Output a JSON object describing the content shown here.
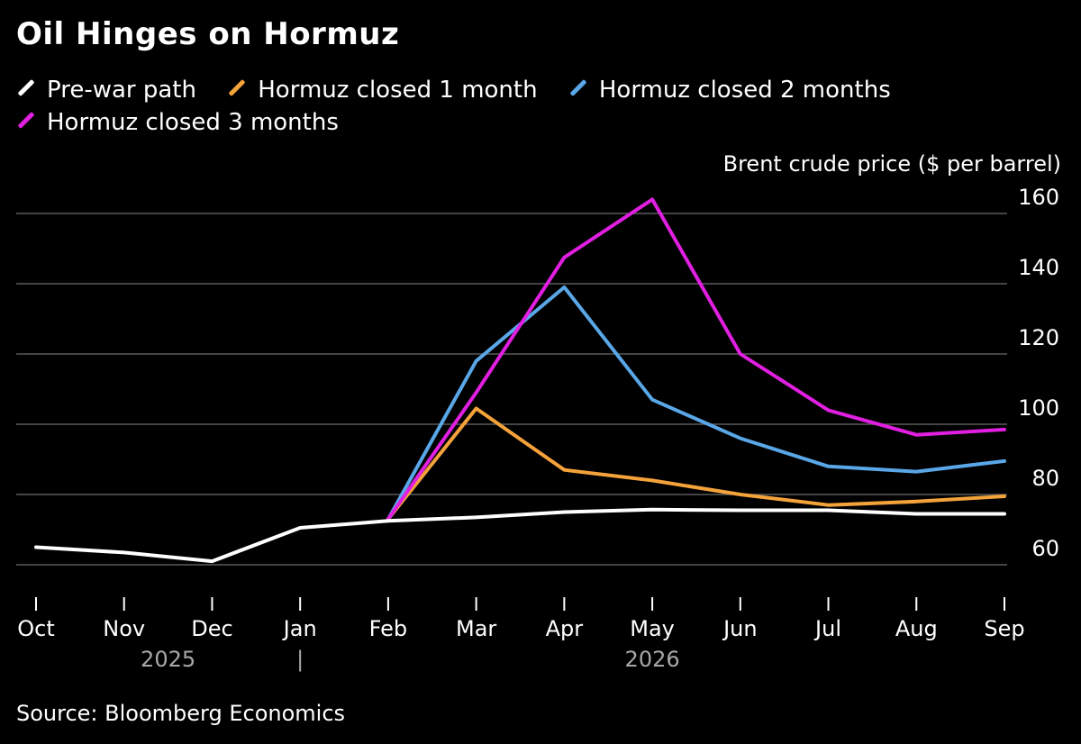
{
  "chart_data": {
    "type": "line",
    "title": "Oil Hinges on Hormuz",
    "ylabel": "Brent crude price ($ per barrel)",
    "source": "Source: Bloomberg Economics",
    "ylim": [
      50,
      165
    ],
    "yticks": [
      60,
      80,
      100,
      120,
      140,
      160
    ],
    "categories": [
      "Oct",
      "Nov",
      "Dec",
      "Jan",
      "Feb",
      "Mar",
      "Apr",
      "May",
      "Jun",
      "Jul",
      "Aug",
      "Sep"
    ],
    "year_labels": [
      {
        "label": "2025",
        "at": 1.5
      },
      {
        "label": "|",
        "at": 3
      },
      {
        "label": "2026",
        "at": 7
      }
    ],
    "series": [
      {
        "name": "Pre-war path",
        "color": "#ffffff",
        "values": [
          65,
          63.5,
          61,
          70.5,
          72.5,
          73.5,
          75,
          75.7,
          75.5,
          75.5,
          74.5,
          74.5
        ]
      },
      {
        "name": "Hormuz closed 1 month",
        "color": "#f4a23a",
        "values": [
          null,
          null,
          null,
          null,
          73,
          104.5,
          87,
          84,
          80,
          77,
          78,
          79.5
        ]
      },
      {
        "name": "Hormuz closed 2 months",
        "color": "#5aa7e8",
        "values": [
          null,
          null,
          null,
          null,
          73,
          118,
          139,
          107,
          96,
          88,
          86.5,
          89.5
        ]
      },
      {
        "name": "Hormuz closed 3 months",
        "color": "#e11fe1",
        "values": [
          null,
          null,
          null,
          null,
          73,
          109,
          147.5,
          164,
          120,
          104,
          97,
          98.5
        ]
      }
    ]
  }
}
